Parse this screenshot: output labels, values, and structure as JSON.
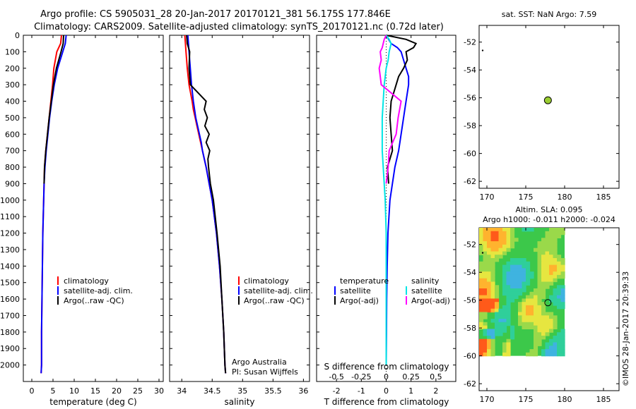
{
  "header": {
    "title_line1": "Argo profile: CS 5905031_28 20-Jan-2017 20170121_381 56.175S 177.846E",
    "title_line2": "Climatology: CARS2009. Satellite-adjusted climatology: synTS_20170121.nc (0.72d later)"
  },
  "colors": {
    "climatology": "#ff0000",
    "satellite": "#0000ff",
    "argo": "#000000",
    "sat_salinity": "#00e5e5",
    "argo_salinity": "#ff00ff",
    "argo_marker": "#9acd32"
  },
  "legend": {
    "climatology": "climatology",
    "satellite_adj": "satellite-adj. clim.",
    "argo_raw": "Argo(..raw -QC)"
  },
  "diff_legend": {
    "temperature_head": "temperature",
    "salinity_head": "salinity",
    "satellite": "satellite",
    "argo_adj": "Argo(-adj)"
  },
  "credit": {
    "line1": "Argo Australia",
    "line2": "PI: Susan Wijffels"
  },
  "watermark": "©IMOS 28-Jan-2017 20:39:33",
  "map_top_title": "sat. SST: NaN Argo: 7.59",
  "map_bottom_title1": "Altim. SLA: 0.095",
  "map_bottom_title2": "Argo h1000: -0.011 h2000: -0.024",
  "chart_data": [
    {
      "type": "line",
      "name": "temperature-profile",
      "xlabel": "temperature (deg C)",
      "ylabel": "",
      "xlim": [
        -2,
        31
      ],
      "ylim": [
        2100,
        0
      ],
      "xticks": [
        "0",
        "5",
        "10",
        "15",
        "20",
        "25",
        "30"
      ],
      "yticks": [
        "0",
        "100",
        "200",
        "300",
        "400",
        "500",
        "600",
        "700",
        "800",
        "900",
        "1000",
        "1100",
        "1200",
        "1300",
        "1400",
        "1500",
        "1600",
        "1700",
        "1800",
        "1900",
        "2000"
      ],
      "depth": [
        0,
        50,
        100,
        200,
        300,
        400,
        500,
        600,
        700,
        800,
        900,
        1000,
        1200,
        1400,
        1600,
        1800,
        2000,
        2050
      ],
      "series": [
        {
          "name": "climatology",
          "values": [
            7.0,
            6.8,
            5.9,
            5.2,
            4.9,
            4.5,
            4.1,
            3.7,
            3.3,
            3.0,
            2.9,
            2.8,
            2.6,
            2.5,
            2.4,
            2.3,
            2.3,
            2.2
          ]
        },
        {
          "name": "satellite-adj. clim.",
          "values": [
            8.1,
            7.9,
            7.3,
            6.1,
            5.3,
            4.7,
            4.2,
            3.8,
            3.4,
            3.1,
            2.9,
            2.8,
            2.6,
            2.5,
            2.4,
            2.3,
            2.3,
            2.2
          ]
        },
        {
          "name": "Argo(..raw -QC)",
          "values": [
            7.5,
            7.4,
            6.9,
            5.8,
            5.1,
            4.6,
            4.1,
            3.7,
            3.3,
            3.0,
            2.9,
            null,
            null,
            null,
            null,
            null,
            null,
            null
          ]
        }
      ]
    },
    {
      "type": "line",
      "name": "salinity-profile",
      "xlabel": "salinity",
      "xlim": [
        33.8,
        36.1
      ],
      "ylim": [
        2100,
        0
      ],
      "xticks": [
        "34",
        "34.5",
        "35",
        "35.5",
        "36"
      ],
      "depth": [
        0,
        50,
        100,
        200,
        300,
        400,
        450,
        500,
        550,
        600,
        650,
        700,
        750,
        800,
        900,
        1000,
        1200,
        1400,
        1600,
        1800,
        2000,
        2050
      ],
      "series": [
        {
          "name": "climatology",
          "values": [
            34.05,
            34.06,
            34.07,
            34.09,
            34.12,
            34.17,
            34.19,
            34.22,
            34.25,
            34.28,
            34.31,
            34.34,
            34.37,
            34.4,
            34.45,
            34.5,
            34.57,
            34.62,
            34.66,
            34.69,
            34.71,
            34.72
          ]
        },
        {
          "name": "satellite-adj. clim.",
          "values": [
            34.1,
            34.11,
            34.12,
            34.14,
            34.16,
            34.19,
            34.21,
            34.23,
            34.26,
            34.29,
            34.32,
            34.34,
            34.37,
            34.4,
            34.45,
            34.5,
            34.57,
            34.62,
            34.66,
            34.69,
            34.71,
            34.72
          ]
        },
        {
          "name": "Argo(..raw -QC)",
          "values": [
            34.08,
            34.09,
            34.13,
            34.12,
            34.14,
            34.4,
            34.37,
            34.42,
            34.38,
            34.45,
            34.4,
            34.46,
            34.43,
            34.44,
            34.47,
            34.52,
            34.58,
            34.63,
            34.66,
            34.69,
            34.71,
            34.72
          ]
        }
      ]
    },
    {
      "type": "line",
      "name": "difference-profile",
      "xlabel_top": "S difference from climatology",
      "xlabel_bottom": "T difference from climatology",
      "xlim_T": [
        -2.8,
        2.8
      ],
      "xticks_T": [
        "-2",
        "-1",
        "0",
        "1",
        "2"
      ],
      "xlim_S": [
        -0.7,
        0.7
      ],
      "xticks_S": [
        "-0.5",
        "-0.25",
        "0",
        "0.25",
        "0.5"
      ],
      "ylim": [
        2100,
        0
      ],
      "depth": [
        0,
        25,
        50,
        75,
        100,
        150,
        200,
        250,
        300,
        400,
        500,
        600,
        700,
        800,
        900,
        1000,
        1200,
        1400,
        1600,
        1800,
        2000
      ],
      "series": [
        {
          "name": "temperature satellite",
          "axis": "T",
          "values": [
            0.0,
            0.1,
            0.2,
            0.45,
            0.6,
            0.7,
            0.8,
            0.9,
            0.9,
            0.8,
            0.7,
            0.6,
            0.5,
            0.35,
            0.25,
            0.15,
            0.07,
            0.04,
            0.02,
            0.01,
            0.0
          ]
        },
        {
          "name": "temperature Argo(-adj)",
          "values": [
            0.0,
            0.8,
            1.2,
            1.1,
            0.8,
            0.85,
            0.7,
            0.5,
            0.4,
            0.2,
            0.15,
            0.2,
            0.25,
            0.05,
            0.1,
            null,
            null,
            null,
            null,
            null,
            null
          ],
          "axis": "T"
        },
        {
          "name": "salinity satellite",
          "axis": "S",
          "values": [
            0.0,
            0.03,
            0.05,
            0.04,
            0.03,
            0.02,
            0.0,
            -0.01,
            -0.02,
            -0.03,
            -0.04,
            -0.04,
            -0.04,
            -0.03,
            -0.02,
            -0.01,
            0.0,
            0.0,
            0.0,
            0.0,
            0.0
          ]
        },
        {
          "name": "salinity Argo(-adj)",
          "values": [
            0.0,
            -0.02,
            -0.03,
            -0.04,
            -0.06,
            -0.05,
            -0.07,
            -0.06,
            -0.05,
            0.15,
            0.12,
            0.1,
            0.03,
            0.02,
            0.0,
            null,
            null,
            null,
            null,
            null,
            null
          ],
          "axis": "S"
        }
      ]
    },
    {
      "type": "scatter",
      "name": "sst-map",
      "title": "sat. SST: NaN Argo: 7.59",
      "xlim": [
        169,
        187
      ],
      "ylim": [
        -62.5,
        -50.8
      ],
      "xticks": [
        "170",
        "175",
        "180",
        "185"
      ],
      "yticks": [
        "-52",
        "-54",
        "-56",
        "-58",
        "-60",
        "-62"
      ],
      "points": [
        {
          "x": 177.85,
          "y": -56.18
        }
      ]
    },
    {
      "type": "heatmap",
      "name": "sla-map",
      "title": "Altim. SLA: 0.095",
      "subtitle": "Argo h1000: -0.011 h2000: -0.024",
      "xlim": [
        169,
        187
      ],
      "ylim": [
        -62.5,
        -50.8
      ],
      "xticks": [
        "170",
        "175",
        "180",
        "185"
      ],
      "yticks": [
        "-52",
        "-54",
        "-56",
        "-58",
        "-60",
        "-62"
      ],
      "extent": {
        "lon": [
          169,
          180
        ],
        "lat": [
          -60,
          -50.8
        ]
      },
      "points": [
        {
          "x": 177.85,
          "y": -56.18
        }
      ]
    }
  ]
}
